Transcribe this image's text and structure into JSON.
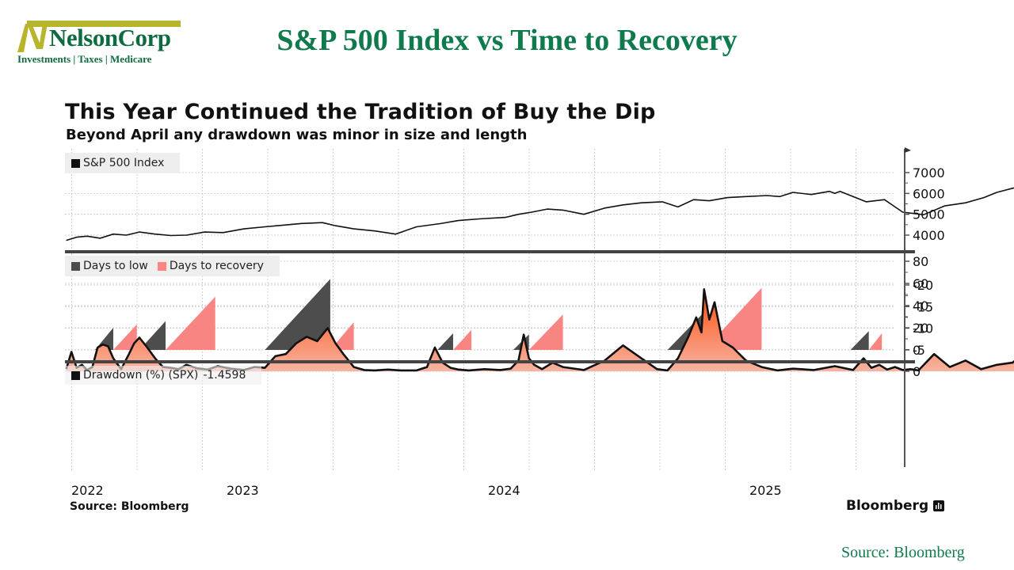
{
  "logo": {
    "name": "NelsonCorp",
    "tagline": "Investments | Taxes | Medicare",
    "colors": {
      "bar": "#b8b42c",
      "text": "#0e6b3f"
    }
  },
  "slide_title": "S&P 500 Index vs Time to Recovery",
  "footer_source": "Source: Bloomberg",
  "chart_data": [
    {
      "panel": "price",
      "type": "line",
      "title": "This Year Continued the Tradition of Buy the Dip",
      "subtitle": "Beyond April any drawdown was minor in size and length",
      "legend": [
        {
          "label": "S&P 500 Index",
          "color": "#111111"
        }
      ],
      "legend_position": "top-left",
      "y_ticks": [
        4000,
        5000,
        6000,
        7000
      ],
      "ylim": [
        3500,
        7900
      ],
      "x_ticks": [
        "2022",
        "2023",
        "2024",
        "2025"
      ],
      "grid": true,
      "series": [
        {
          "name": "S&P 500 Index",
          "x": [
            2022.32,
            2022.36,
            2022.4,
            2022.45,
            2022.5,
            2022.55,
            2022.6,
            2022.66,
            2022.72,
            2022.78,
            2022.85,
            2022.92,
            2023.0,
            2023.08,
            2023.15,
            2023.22,
            2023.3,
            2023.35,
            2023.42,
            2023.5,
            2023.58,
            2023.66,
            2023.75,
            2023.82,
            2023.9,
            2024.0,
            2024.05,
            2024.1,
            2024.16,
            2024.22,
            2024.3,
            2024.38,
            2024.45,
            2024.52,
            2024.6,
            2024.66,
            2024.72,
            2024.78,
            2024.85,
            2024.92,
            2025.0,
            2025.05,
            2025.1,
            2025.17,
            2025.24,
            2025.26,
            2025.28,
            2025.32,
            2025.38,
            2025.45,
            2025.52,
            2025.6,
            2025.68,
            2025.76,
            2025.83,
            2025.88,
            2025.94,
            2026.0,
            2026.05,
            2026.1,
            2026.14
          ],
          "y": [
            3750,
            3900,
            3950,
            3850,
            4050,
            4000,
            4150,
            4050,
            3980,
            4000,
            4150,
            4120,
            4300,
            4400,
            4480,
            4560,
            4600,
            4450,
            4300,
            4200,
            4050,
            4400,
            4550,
            4700,
            4780,
            4850,
            5000,
            5100,
            5250,
            5200,
            5000,
            5300,
            5450,
            5550,
            5600,
            5350,
            5700,
            5650,
            5800,
            5850,
            5900,
            5850,
            6050,
            5950,
            6100,
            6000,
            6100,
            5900,
            5600,
            5700,
            5100,
            4980,
            5400,
            5550,
            5800,
            6050,
            6250,
            6400,
            6600,
            6800,
            6850
          ]
        }
      ]
    },
    {
      "panel": "days",
      "type": "area",
      "legend": [
        {
          "label": "Days to low",
          "color": "#4d4d4d"
        },
        {
          "label": "Days to recovery",
          "color": "#f98583"
        }
      ],
      "legend_position": "top-left",
      "y_ticks": [
        0,
        20,
        40,
        60,
        80
      ],
      "ylim": [
        -1,
        85
      ],
      "grid": true,
      "episodes": [
        {
          "low": {
            "start": 2022.43,
            "end": 2022.5,
            "peak": 20
          },
          "recovery": {
            "start": 2022.5,
            "end": 2022.59,
            "peak": 23
          }
        },
        {
          "low": {
            "start": 2022.6,
            "end": 2022.7,
            "peak": 26
          },
          "recovery": {
            "start": 2022.7,
            "end": 2022.89,
            "peak": 48
          }
        },
        {
          "low": {
            "start": 2023.08,
            "end": 2023.33,
            "peak": 64
          },
          "recovery": {
            "start": 2023.33,
            "end": 2023.42,
            "peak": 25
          }
        },
        {
          "low": {
            "start": 2023.74,
            "end": 2023.8,
            "peak": 15
          },
          "recovery": {
            "start": 2023.8,
            "end": 2023.87,
            "peak": 18
          }
        },
        {
          "low": {
            "start": 2024.03,
            "end": 2024.09,
            "peak": 14
          },
          "recovery": {
            "start": 2024.09,
            "end": 2024.22,
            "peak": 32
          }
        },
        {
          "low": {
            "start": 2024.62,
            "end": 2024.76,
            "peak": 34
          },
          "recovery": {
            "start": 2024.76,
            "end": 2024.98,
            "peak": 56
          }
        },
        {
          "low": {
            "start": 2025.32,
            "end": 2025.39,
            "peak": 17
          },
          "recovery": {
            "start": 2025.39,
            "end": 2025.44,
            "peak": 15
          }
        }
      ]
    },
    {
      "panel": "drawdown",
      "type": "area",
      "legend": [
        {
          "label": "Drawdown (%) (SPX)",
          "value": "-1.4598",
          "color": "#111111"
        }
      ],
      "legend_position": "top-left",
      "y_ticks": [
        0,
        -5,
        -10,
        -15,
        -20
      ],
      "ylim": [
        -21,
        1
      ],
      "grid": true,
      "fill_colors": {
        "top": "#ff4e0d",
        "bottom": "#f7b3a1"
      },
      "series": [
        {
          "name": "Drawdown (%) (SPX)",
          "x": [
            2022.32,
            2022.34,
            2022.36,
            2022.38,
            2022.4,
            2022.42,
            2022.44,
            2022.46,
            2022.48,
            2022.5,
            2022.53,
            2022.56,
            2022.58,
            2022.6,
            2022.63,
            2022.66,
            2022.69,
            2022.72,
            2022.75,
            2022.78,
            2022.82,
            2022.86,
            2022.9,
            2022.95,
            2023.0,
            2023.04,
            2023.08,
            2023.12,
            2023.16,
            2023.2,
            2023.24,
            2023.28,
            2023.32,
            2023.35,
            2023.38,
            2023.42,
            2023.46,
            2023.5,
            2023.55,
            2023.6,
            2023.66,
            2023.7,
            2023.73,
            2023.76,
            2023.79,
            2023.82,
            2023.86,
            2023.92,
            2023.98,
            2024.02,
            2024.05,
            2024.07,
            2024.09,
            2024.11,
            2024.14,
            2024.18,
            2024.22,
            2024.3,
            2024.38,
            2024.45,
            2024.52,
            2024.58,
            2024.62,
            2024.66,
            2024.7,
            2024.73,
            2024.75,
            2024.76,
            2024.78,
            2024.8,
            2024.83,
            2024.87,
            2024.92,
            2024.98,
            2025.04,
            2025.1,
            2025.18,
            2025.26,
            2025.33,
            2025.37,
            2025.4,
            2025.43,
            2025.46,
            2025.49,
            2025.52,
            2025.55,
            2025.58,
            2025.64,
            2025.7,
            2025.76,
            2025.82,
            2025.88,
            2025.94,
            2026.0,
            2026.05,
            2026.1,
            2026.14
          ],
          "y": [
            -0.5,
            -4.5,
            -0.8,
            -1.5,
            -0.3,
            -1.0,
            -5.5,
            -6.2,
            -5.8,
            -3.0,
            -0.5,
            -4.0,
            -6.5,
            -7.8,
            -5.5,
            -3.0,
            -1.0,
            -0.8,
            -0.5,
            -1.5,
            -0.7,
            -0.4,
            -1.2,
            -0.6,
            -0.3,
            -1.0,
            -0.8,
            -3.5,
            -4.0,
            -6.5,
            -8.0,
            -7.0,
            -10.0,
            -6.5,
            -4.0,
            -1.0,
            -0.3,
            -0.2,
            -0.4,
            -0.2,
            -0.2,
            -1.0,
            -5.5,
            -2.0,
            -0.8,
            -0.4,
            -0.2,
            -0.5,
            -0.3,
            -0.6,
            -2.5,
            -8.5,
            -3.0,
            -1.5,
            -0.5,
            -2.0,
            -1.0,
            -0.3,
            -2.5,
            -6.0,
            -3.0,
            -0.5,
            -0.2,
            -3.0,
            -8.0,
            -12.5,
            -9.0,
            -19.0,
            -12.0,
            -16.0,
            -7.0,
            -5.5,
            -2.5,
            -1.0,
            -0.2,
            -0.6,
            -0.3,
            -1.2,
            -0.3,
            -3.0,
            -0.8,
            -1.5,
            -0.4,
            -1.0,
            -0.3,
            -0.5,
            -0.2,
            -4.0,
            -1.0,
            -2.5,
            -0.5,
            -1.5,
            -2.0,
            -5.0,
            -1.5,
            -0.5,
            -1.5
          ]
        }
      ]
    }
  ],
  "x_axis": {
    "labels": [
      "2022",
      "2023",
      "2024",
      "2025"
    ]
  },
  "inner_source": "Source: Bloomberg",
  "brand": "Bloomberg"
}
